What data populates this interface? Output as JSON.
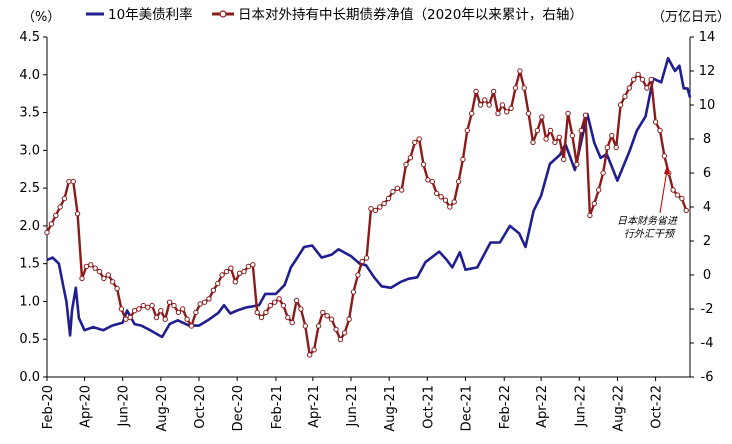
{
  "colors": {
    "us10y": "#1f1f8f",
    "japan_flow": "#8b1a1a",
    "marker_fill": "#ffffff",
    "annotation_arrow": "#c00000"
  },
  "labels": {
    "left_unit": "（%）",
    "right_unit": "（万亿日元）",
    "annotation_line1": "日本财务省进",
    "annotation_line2": "行外汇干预"
  },
  "chart_data": {
    "type": "line",
    "x_labels": [
      "Feb-20",
      "Apr-20",
      "Jun-20",
      "Aug-20",
      "Oct-20",
      "Dec-20",
      "Feb-21",
      "Apr-21",
      "Jun-21",
      "Aug-21",
      "Oct-21",
      "Dec-21",
      "Feb-22",
      "Apr-22",
      "Jun-22",
      "Aug-22",
      "Oct-22"
    ],
    "x_range": [
      "2020-02-01",
      "2022-11-25"
    ],
    "left_axis": {
      "label": "（%）",
      "ylim": [
        0,
        4.5
      ],
      "ticks": [
        "0.0",
        "0.5",
        "1.0",
        "1.5",
        "2.0",
        "2.5",
        "3.0",
        "3.5",
        "4.0",
        "4.5"
      ]
    },
    "right_axis": {
      "label": "（万亿日元）",
      "ylim": [
        -6,
        14
      ],
      "ticks": [
        "-6",
        "-4",
        "-2",
        "0",
        "2",
        "4",
        "6",
        "8",
        "10",
        "12",
        "14"
      ]
    },
    "legend_position": "top",
    "series": [
      {
        "name": "10年美债利率",
        "axis": "left",
        "points": [
          [
            "2020-02-01",
            1.55
          ],
          [
            "2020-02-10",
            1.58
          ],
          [
            "2020-02-20",
            1.5
          ],
          [
            "2020-02-27",
            1.2
          ],
          [
            "2020-03-03",
            1.0
          ],
          [
            "2020-03-09",
            0.55
          ],
          [
            "2020-03-12",
            0.88
          ],
          [
            "2020-03-18",
            1.18
          ],
          [
            "2020-03-23",
            0.78
          ],
          [
            "2020-04-01",
            0.62
          ],
          [
            "2020-04-15",
            0.66
          ],
          [
            "2020-05-01",
            0.62
          ],
          [
            "2020-05-15",
            0.68
          ],
          [
            "2020-06-01",
            0.72
          ],
          [
            "2020-06-08",
            0.88
          ],
          [
            "2020-06-20",
            0.7
          ],
          [
            "2020-07-01",
            0.68
          ],
          [
            "2020-07-15",
            0.62
          ],
          [
            "2020-08-03",
            0.53
          ],
          [
            "2020-08-15",
            0.7
          ],
          [
            "2020-08-28",
            0.75
          ],
          [
            "2020-09-15",
            0.68
          ],
          [
            "2020-10-01",
            0.68
          ],
          [
            "2020-10-15",
            0.75
          ],
          [
            "2020-11-01",
            0.85
          ],
          [
            "2020-11-10",
            0.95
          ],
          [
            "2020-11-20",
            0.84
          ],
          [
            "2020-12-01",
            0.88
          ],
          [
            "2020-12-15",
            0.92
          ],
          [
            "2021-01-05",
            0.95
          ],
          [
            "2021-01-15",
            1.1
          ],
          [
            "2021-02-01",
            1.1
          ],
          [
            "2021-02-15",
            1.22
          ],
          [
            "2021-02-25",
            1.45
          ],
          [
            "2021-03-05",
            1.55
          ],
          [
            "2021-03-18",
            1.72
          ],
          [
            "2021-03-31",
            1.74
          ],
          [
            "2021-04-15",
            1.58
          ],
          [
            "2021-05-01",
            1.62
          ],
          [
            "2021-05-12",
            1.69
          ],
          [
            "2021-06-01",
            1.6
          ],
          [
            "2021-06-15",
            1.5
          ],
          [
            "2021-06-25",
            1.48
          ],
          [
            "2021-07-08",
            1.32
          ],
          [
            "2021-07-20",
            1.2
          ],
          [
            "2021-08-04",
            1.18
          ],
          [
            "2021-08-20",
            1.26
          ],
          [
            "2021-09-01",
            1.3
          ],
          [
            "2021-09-15",
            1.32
          ],
          [
            "2021-09-28",
            1.52
          ],
          [
            "2021-10-20",
            1.66
          ],
          [
            "2021-11-01",
            1.55
          ],
          [
            "2021-11-10",
            1.45
          ],
          [
            "2021-11-22",
            1.65
          ],
          [
            "2021-12-01",
            1.42
          ],
          [
            "2021-12-20",
            1.45
          ],
          [
            "2022-01-10",
            1.78
          ],
          [
            "2022-01-25",
            1.78
          ],
          [
            "2022-02-10",
            2.0
          ],
          [
            "2022-02-25",
            1.9
          ],
          [
            "2022-03-07",
            1.72
          ],
          [
            "2022-03-20",
            2.2
          ],
          [
            "2022-04-01",
            2.4
          ],
          [
            "2022-04-15",
            2.82
          ],
          [
            "2022-05-01",
            2.94
          ],
          [
            "2022-05-10",
            3.08
          ],
          [
            "2022-05-25",
            2.74
          ],
          [
            "2022-06-14",
            3.48
          ],
          [
            "2022-06-25",
            3.1
          ],
          [
            "2022-07-05",
            2.9
          ],
          [
            "2022-07-15",
            2.95
          ],
          [
            "2022-08-01",
            2.6
          ],
          [
            "2022-08-20",
            2.98
          ],
          [
            "2022-09-01",
            3.26
          ],
          [
            "2022-09-15",
            3.45
          ],
          [
            "2022-09-27",
            3.95
          ],
          [
            "2022-10-10",
            3.9
          ],
          [
            "2022-10-21",
            4.22
          ],
          [
            "2022-11-01",
            4.05
          ],
          [
            "2022-11-08",
            4.12
          ],
          [
            "2022-11-15",
            3.82
          ],
          [
            "2022-11-21",
            3.82
          ],
          [
            "2022-11-25",
            3.7
          ]
        ]
      },
      {
        "name": "日本对外持有中长期债券净值（2020年以来累计，右轴）",
        "axis": "right",
        "points": [
          [
            "2020-02-01",
            2.5
          ],
          [
            "2020-02-08",
            3.0
          ],
          [
            "2020-02-15",
            3.5
          ],
          [
            "2020-02-22",
            4.0
          ],
          [
            "2020-02-29",
            4.5
          ],
          [
            "2020-03-07",
            5.5
          ],
          [
            "2020-03-14",
            5.5
          ],
          [
            "2020-03-21",
            3.6
          ],
          [
            "2020-03-28",
            -0.2
          ],
          [
            "2020-04-04",
            0.5
          ],
          [
            "2020-04-11",
            0.6
          ],
          [
            "2020-04-18",
            0.4
          ],
          [
            "2020-04-25",
            0.2
          ],
          [
            "2020-05-02",
            -0.2
          ],
          [
            "2020-05-09",
            0.0
          ],
          [
            "2020-05-16",
            -0.4
          ],
          [
            "2020-05-23",
            -0.8
          ],
          [
            "2020-05-30",
            -2.0
          ],
          [
            "2020-06-06",
            -2.6
          ],
          [
            "2020-06-13",
            -2.5
          ],
          [
            "2020-06-20",
            -2.1
          ],
          [
            "2020-06-27",
            -2.0
          ],
          [
            "2020-07-04",
            -1.8
          ],
          [
            "2020-07-11",
            -1.9
          ],
          [
            "2020-07-18",
            -1.8
          ],
          [
            "2020-07-25",
            -2.5
          ],
          [
            "2020-08-01",
            -2.1
          ],
          [
            "2020-08-08",
            -2.6
          ],
          [
            "2020-08-15",
            -1.6
          ],
          [
            "2020-08-22",
            -1.8
          ],
          [
            "2020-08-29",
            -2.2
          ],
          [
            "2020-09-05",
            -2.0
          ],
          [
            "2020-09-12",
            -2.6
          ],
          [
            "2020-09-19",
            -3.0
          ],
          [
            "2020-09-26",
            -2.2
          ],
          [
            "2020-10-03",
            -1.7
          ],
          [
            "2020-10-10",
            -1.6
          ],
          [
            "2020-10-17",
            -1.4
          ],
          [
            "2020-10-24",
            -0.9
          ],
          [
            "2020-10-31",
            -0.5
          ],
          [
            "2020-11-07",
            0.0
          ],
          [
            "2020-11-14",
            0.2
          ],
          [
            "2020-11-21",
            0.4
          ],
          [
            "2020-11-28",
            -0.4
          ],
          [
            "2020-12-05",
            0.1
          ],
          [
            "2020-12-12",
            0.2
          ],
          [
            "2020-12-19",
            0.5
          ],
          [
            "2020-12-26",
            0.6
          ],
          [
            "2021-01-02",
            -2.2
          ],
          [
            "2021-01-09",
            -2.5
          ],
          [
            "2021-01-16",
            -2.2
          ],
          [
            "2021-01-23",
            -1.8
          ],
          [
            "2021-01-30",
            -1.6
          ],
          [
            "2021-02-06",
            -1.4
          ],
          [
            "2021-02-13",
            -1.8
          ],
          [
            "2021-02-20",
            -2.5
          ],
          [
            "2021-02-27",
            -2.8
          ],
          [
            "2021-03-06",
            -1.5
          ],
          [
            "2021-03-13",
            -2.0
          ],
          [
            "2021-03-20",
            -3.0
          ],
          [
            "2021-03-27",
            -4.7
          ],
          [
            "2021-04-03",
            -4.4
          ],
          [
            "2021-04-10",
            -3.0
          ],
          [
            "2021-04-17",
            -2.2
          ],
          [
            "2021-04-24",
            -2.4
          ],
          [
            "2021-05-01",
            -2.6
          ],
          [
            "2021-05-08",
            -3.2
          ],
          [
            "2021-05-15",
            -3.8
          ],
          [
            "2021-05-22",
            -3.4
          ],
          [
            "2021-05-29",
            -2.6
          ],
          [
            "2021-06-05",
            -1.0
          ],
          [
            "2021-06-12",
            0.0
          ],
          [
            "2021-06-19",
            0.8
          ],
          [
            "2021-06-26",
            1.0
          ],
          [
            "2021-07-03",
            3.9
          ],
          [
            "2021-07-10",
            3.8
          ],
          [
            "2021-07-17",
            4.0
          ],
          [
            "2021-07-24",
            4.2
          ],
          [
            "2021-07-31",
            4.5
          ],
          [
            "2021-08-07",
            4.9
          ],
          [
            "2021-08-14",
            5.1
          ],
          [
            "2021-08-21",
            5.0
          ],
          [
            "2021-08-28",
            6.5
          ],
          [
            "2021-09-04",
            6.9
          ],
          [
            "2021-09-11",
            7.8
          ],
          [
            "2021-09-18",
            8.0
          ],
          [
            "2021-09-25",
            6.5
          ],
          [
            "2021-10-02",
            5.6
          ],
          [
            "2021-10-09",
            5.5
          ],
          [
            "2021-10-16",
            4.8
          ],
          [
            "2021-10-23",
            4.6
          ],
          [
            "2021-10-30",
            4.4
          ],
          [
            "2021-11-06",
            4.0
          ],
          [
            "2021-11-13",
            4.3
          ],
          [
            "2021-11-20",
            5.5
          ],
          [
            "2021-11-27",
            6.8
          ],
          [
            "2021-12-04",
            8.5
          ],
          [
            "2021-12-11",
            9.5
          ],
          [
            "2021-12-18",
            10.8
          ],
          [
            "2021-12-25",
            10.0
          ],
          [
            "2022-01-01",
            10.3
          ],
          [
            "2022-01-08",
            10.0
          ],
          [
            "2022-01-15",
            10.8
          ],
          [
            "2022-01-22",
            9.5
          ],
          [
            "2022-01-29",
            10.0
          ],
          [
            "2022-02-05",
            9.6
          ],
          [
            "2022-02-12",
            9.8
          ],
          [
            "2022-02-19",
            11.0
          ],
          [
            "2022-02-26",
            12.0
          ],
          [
            "2022-03-05",
            11.0
          ],
          [
            "2022-03-12",
            9.5
          ],
          [
            "2022-03-19",
            7.8
          ],
          [
            "2022-03-26",
            8.5
          ],
          [
            "2022-04-02",
            9.3
          ],
          [
            "2022-04-09",
            8.0
          ],
          [
            "2022-04-16",
            8.5
          ],
          [
            "2022-04-23",
            7.8
          ],
          [
            "2022-04-30",
            8.1
          ],
          [
            "2022-05-07",
            6.8
          ],
          [
            "2022-05-14",
            9.5
          ],
          [
            "2022-05-21",
            8.2
          ],
          [
            "2022-05-28",
            6.5
          ],
          [
            "2022-06-04",
            8.5
          ],
          [
            "2022-06-11",
            9.4
          ],
          [
            "2022-06-18",
            3.5
          ],
          [
            "2022-06-25",
            4.2
          ],
          [
            "2022-07-02",
            5.0
          ],
          [
            "2022-07-09",
            6.0
          ],
          [
            "2022-07-16",
            7.5
          ],
          [
            "2022-07-23",
            8.2
          ],
          [
            "2022-07-30",
            7.5
          ],
          [
            "2022-08-06",
            10.0
          ],
          [
            "2022-08-13",
            10.5
          ],
          [
            "2022-08-20",
            11.0
          ],
          [
            "2022-08-27",
            11.5
          ],
          [
            "2022-09-03",
            11.8
          ],
          [
            "2022-09-10",
            11.5
          ],
          [
            "2022-09-17",
            11.0
          ],
          [
            "2022-09-24",
            11.5
          ],
          [
            "2022-10-01",
            9.0
          ],
          [
            "2022-10-08",
            8.5
          ],
          [
            "2022-10-15",
            7.0
          ],
          [
            "2022-10-22",
            6.0
          ],
          [
            "2022-10-29",
            5.0
          ],
          [
            "2022-11-05",
            4.7
          ],
          [
            "2022-11-12",
            4.5
          ],
          [
            "2022-11-19",
            3.8
          ]
        ]
      }
    ]
  }
}
